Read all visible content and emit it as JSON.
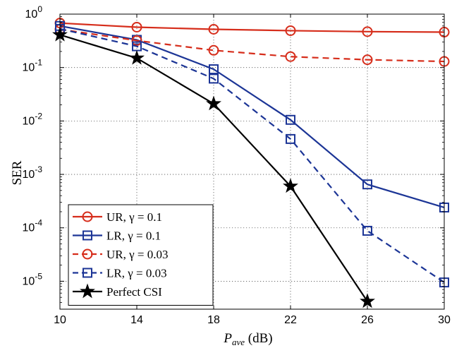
{
  "chart_data": {
    "type": "line",
    "title": "",
    "xlabel_main": "P",
    "xlabel_sub": "ave",
    "xlabel_unit": " (dB)",
    "ylabel": "SER",
    "x": [
      10,
      14,
      18,
      22,
      26,
      30
    ],
    "xlim": [
      10,
      30
    ],
    "ylim": [
      3e-06,
      1
    ],
    "yscale": "log",
    "grid": true,
    "legend_position": "bottom-left",
    "xticks": [
      "10",
      "14",
      "18",
      "22",
      "26",
      "30"
    ],
    "yticks": [
      {
        "base": "10",
        "exp": "0"
      },
      {
        "base": "10",
        "exp": "-1"
      },
      {
        "base": "10",
        "exp": "-2"
      },
      {
        "base": "10",
        "exp": "-3"
      },
      {
        "base": "10",
        "exp": "-4"
      },
      {
        "base": "10",
        "exp": "-5"
      }
    ],
    "series": [
      {
        "name": "UR, γ = 0.1",
        "color": "#d62d1b",
        "dash": "solid",
        "marker": "circle",
        "values": [
          0.68,
          0.57,
          0.52,
          0.49,
          0.47,
          0.46
        ]
      },
      {
        "name": "LR, γ = 0.1",
        "color": "#1c3596",
        "dash": "solid",
        "marker": "square",
        "values": [
          0.6,
          0.33,
          0.093,
          0.0105,
          0.00065,
          0.00024
        ]
      },
      {
        "name": "UR, γ = 0.03",
        "color": "#d62d1b",
        "dash": "dashed",
        "marker": "circle",
        "values": [
          0.52,
          0.32,
          0.21,
          0.16,
          0.14,
          0.13
        ]
      },
      {
        "name": "LR, γ = 0.03",
        "color": "#1c3596",
        "dash": "dashed",
        "marker": "square",
        "values": [
          0.53,
          0.25,
          0.062,
          0.0046,
          8.8e-05,
          9.5e-06
        ]
      },
      {
        "name": "Perfect CSI",
        "color": "#000000",
        "dash": "solid",
        "marker": "star",
        "values": [
          0.41,
          0.15,
          0.021,
          0.0006,
          4.2e-06,
          null
        ]
      }
    ]
  }
}
